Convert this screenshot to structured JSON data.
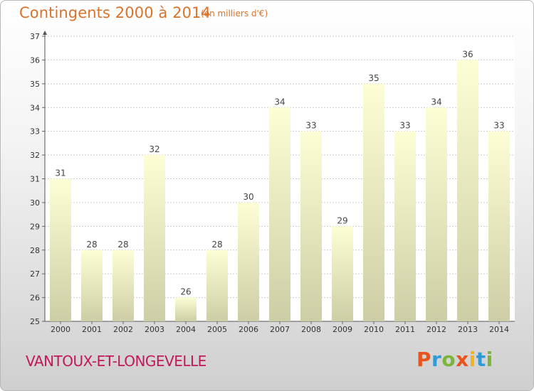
{
  "header": {
    "title": "Contingents 2000 à 2014",
    "subtitle": "(en milliers d'€)"
  },
  "footer": {
    "commune": "VANTOUX-ET-LONGEVELLE",
    "logo_letters": [
      {
        "char": "P",
        "color": "#e8541e"
      },
      {
        "char": "r",
        "color": "#2e9ad6"
      },
      {
        "char": "o",
        "color": "#7bb63a"
      },
      {
        "char": "x",
        "color": "#e8541e"
      },
      {
        "char": "i",
        "color": "#f0b41c"
      },
      {
        "char": "t",
        "color": "#2e9ad6"
      },
      {
        "char": "i",
        "color": "#7bb63a"
      }
    ]
  },
  "colors": {
    "title": "#d9722b",
    "commune": "#c2185b",
    "bar_top": "#fefed6",
    "bar_bottom": "#cdcda6",
    "grid": "#cccccc"
  },
  "chart_data": {
    "type": "bar",
    "title": "Contingents 2000 à 2014",
    "subtitle": "(en milliers d'€)",
    "categories": [
      "2000",
      "2001",
      "2002",
      "2003",
      "2004",
      "2005",
      "2006",
      "2007",
      "2008",
      "2009",
      "2010",
      "2011",
      "2012",
      "2013",
      "2014"
    ],
    "values": [
      31,
      28,
      28,
      32,
      26,
      28,
      30,
      34,
      33,
      29,
      35,
      33,
      34,
      36,
      33
    ],
    "ylim": [
      25,
      37
    ],
    "yticks": [
      25,
      26,
      27,
      28,
      29,
      30,
      31,
      32,
      33,
      34,
      35,
      36,
      37
    ],
    "grid": true,
    "xlabel": "",
    "ylabel": ""
  }
}
